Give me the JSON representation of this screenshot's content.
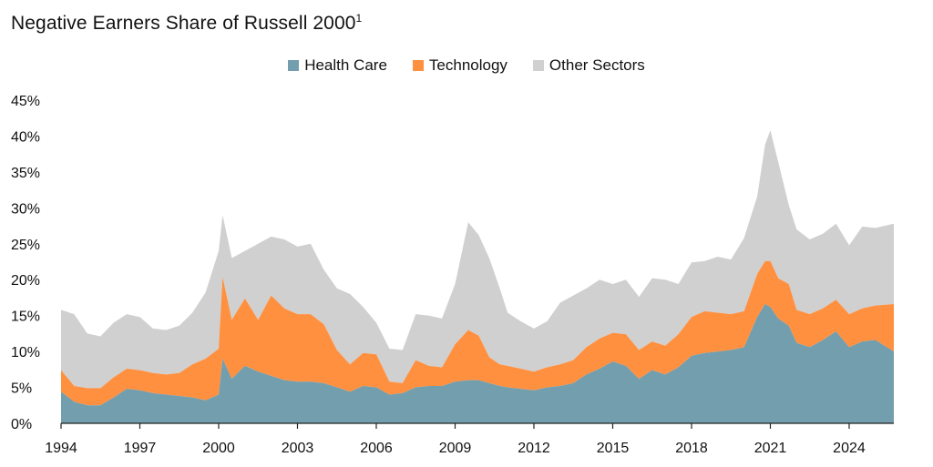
{
  "title": "Negative Earners Share of Russell 2000",
  "title_superscript": "1",
  "chart_data": {
    "type": "area",
    "stacked": true,
    "x_unit": "year",
    "legend_position": "top-center",
    "grid": false,
    "ylim": [
      0,
      45
    ],
    "xlim": [
      1994,
      2025.7
    ],
    "y_tick_labels": [
      "0%",
      "5%",
      "10%",
      "15%",
      "20%",
      "25%",
      "30%",
      "35%",
      "40%",
      "45%"
    ],
    "y_tick_values": [
      0,
      5,
      10,
      15,
      20,
      25,
      30,
      35,
      40,
      45
    ],
    "x_tick_labels": [
      "1994",
      "1997",
      "2000",
      "2003",
      "2006",
      "2009",
      "2012",
      "2015",
      "2018",
      "2021",
      "2024"
    ],
    "x_tick_values": [
      1994,
      1997,
      2000,
      2003,
      2006,
      2009,
      2012,
      2015,
      2018,
      2021,
      2024
    ],
    "x": [
      1994.0,
      1994.5,
      1995.0,
      1995.5,
      1996.0,
      1996.5,
      1997.0,
      1997.5,
      1998.0,
      1998.5,
      1999.0,
      1999.5,
      2000.0,
      2000.15,
      2000.5,
      2001.0,
      2001.5,
      2002.0,
      2002.5,
      2003.0,
      2003.5,
      2004.0,
      2004.5,
      2005.0,
      2005.5,
      2006.0,
      2006.5,
      2007.0,
      2007.5,
      2008.0,
      2008.5,
      2009.0,
      2009.5,
      2009.9,
      2010.3,
      2010.7,
      2011.0,
      2011.5,
      2012.0,
      2012.5,
      2013.0,
      2013.5,
      2014.0,
      2014.5,
      2015.0,
      2015.5,
      2016.0,
      2016.5,
      2017.0,
      2017.5,
      2018.0,
      2018.5,
      2019.0,
      2019.5,
      2020.0,
      2020.5,
      2020.8,
      2021.0,
      2021.3,
      2021.7,
      2022.0,
      2022.5,
      2023.0,
      2023.5,
      2024.0,
      2024.5,
      2025.0,
      2025.7
    ],
    "series": [
      {
        "name": "Health Care",
        "color": "#729eae",
        "values": [
          4.4,
          3.0,
          2.5,
          2.5,
          3.6,
          4.8,
          4.6,
          4.2,
          4.0,
          3.8,
          3.6,
          3.2,
          4.0,
          9.0,
          6.2,
          8.0,
          7.2,
          6.6,
          6.0,
          5.8,
          5.8,
          5.6,
          5.0,
          4.4,
          5.2,
          5.0,
          4.0,
          4.2,
          5.0,
          5.2,
          5.2,
          5.8,
          6.0,
          6.0,
          5.6,
          5.2,
          5.0,
          4.8,
          4.6,
          5.0,
          5.2,
          5.6,
          6.8,
          7.6,
          8.6,
          8.0,
          6.2,
          7.4,
          6.8,
          7.8,
          9.4,
          9.8,
          10.0,
          10.2,
          10.6,
          14.8,
          16.6,
          16.2,
          14.6,
          13.6,
          11.2,
          10.6,
          11.6,
          12.8,
          10.6,
          11.4,
          11.6,
          10.0
        ]
      },
      {
        "name": "Technology",
        "color": "#ff9040",
        "values": [
          3.0,
          2.2,
          2.4,
          2.4,
          2.8,
          2.8,
          2.8,
          2.8,
          2.8,
          3.2,
          4.6,
          5.8,
          6.4,
          11.4,
          8.2,
          9.4,
          7.2,
          11.2,
          10.0,
          9.4,
          9.4,
          8.2,
          5.2,
          3.8,
          4.6,
          4.6,
          1.8,
          1.4,
          3.8,
          2.8,
          2.6,
          5.2,
          7.0,
          6.2,
          3.6,
          3.0,
          3.0,
          2.8,
          2.6,
          2.8,
          3.0,
          3.2,
          3.8,
          4.2,
          4.0,
          4.4,
          4.0,
          4.0,
          4.0,
          4.6,
          5.4,
          5.8,
          5.4,
          5.0,
          5.0,
          6.0,
          6.0,
          6.4,
          5.6,
          5.8,
          4.6,
          4.6,
          4.4,
          4.4,
          4.6,
          4.6,
          4.8,
          6.6
        ]
      },
      {
        "name": "Other Sectors",
        "color": "#d0d0d0",
        "values": [
          8.4,
          10.0,
          7.6,
          7.2,
          7.6,
          7.6,
          7.4,
          6.2,
          6.2,
          6.6,
          7.2,
          9.2,
          13.6,
          8.6,
          8.6,
          6.6,
          10.6,
          8.2,
          9.6,
          9.4,
          9.8,
          7.6,
          8.6,
          9.8,
          6.4,
          4.4,
          4.6,
          4.6,
          6.4,
          7.0,
          6.8,
          8.4,
          15.0,
          14.0,
          13.8,
          10.6,
          7.4,
          6.6,
          6.0,
          6.4,
          8.6,
          9.0,
          8.2,
          8.2,
          6.8,
          7.6,
          7.4,
          8.8,
          9.2,
          7.0,
          7.6,
          7.0,
          7.8,
          7.6,
          10.2,
          10.8,
          16.2,
          18.2,
          16.2,
          11.0,
          11.2,
          10.4,
          10.4,
          10.6,
          9.6,
          11.4,
          10.8,
          11.2
        ]
      }
    ]
  }
}
